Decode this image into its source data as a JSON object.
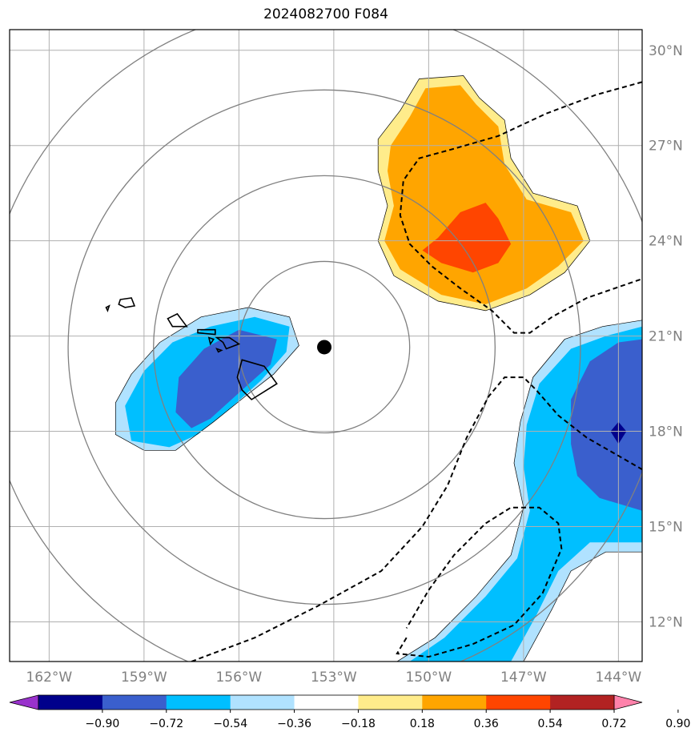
{
  "title": "2024082700 F084",
  "map": {
    "projection": "PlateCarree",
    "extent": {
      "lon": [
        -163.25,
        -143.25
      ],
      "lat": [
        10.75,
        30.65
      ]
    },
    "lon_ticks": [
      {
        "value": -162,
        "label": "162°W"
      },
      {
        "value": -159,
        "label": "159°W"
      },
      {
        "value": -156,
        "label": "156°W"
      },
      {
        "value": -153,
        "label": "153°W"
      },
      {
        "value": -150,
        "label": "150°W"
      },
      {
        "value": -147,
        "label": "147°W"
      },
      {
        "value": -144,
        "label": "144°W"
      }
    ],
    "lat_ticks": [
      {
        "value": 12,
        "label": "12°N"
      },
      {
        "value": 15,
        "label": "15°N"
      },
      {
        "value": 18,
        "label": "18°N"
      },
      {
        "value": 21,
        "label": "21°N"
      },
      {
        "value": 24,
        "label": "24°N"
      },
      {
        "value": 27,
        "label": "27°N"
      },
      {
        "value": 30,
        "label": "30°N"
      }
    ],
    "gridlines": true,
    "storm_center": {
      "lon": -153.3,
      "lat": 20.65
    },
    "range_rings_deg": [
      2.7,
      5.4,
      8.1,
      10.8
    ],
    "colors": {
      "ring": "#808080",
      "grid": "#b0b0b0",
      "coast": "#000000",
      "contour": "#000000"
    }
  },
  "colorbar": {
    "levels": [
      -0.9,
      -0.72,
      -0.54,
      -0.36,
      -0.18,
      0.18,
      0.36,
      0.54,
      0.72,
      0.9
    ],
    "labels": [
      "−0.90",
      "−0.72",
      "−0.54",
      "−0.36",
      "−0.18",
      "0.18",
      "0.36",
      "0.54",
      "0.72",
      "0.90"
    ],
    "colors": [
      "#9932cc",
      "#00008b",
      "#3a5fcd",
      "#00bfff",
      "#b0e2ff",
      "#ffffff",
      "#ffec8b",
      "#ffa500",
      "#ff4500",
      "#b22222",
      "#ff82ab"
    ],
    "extend": "both"
  }
}
